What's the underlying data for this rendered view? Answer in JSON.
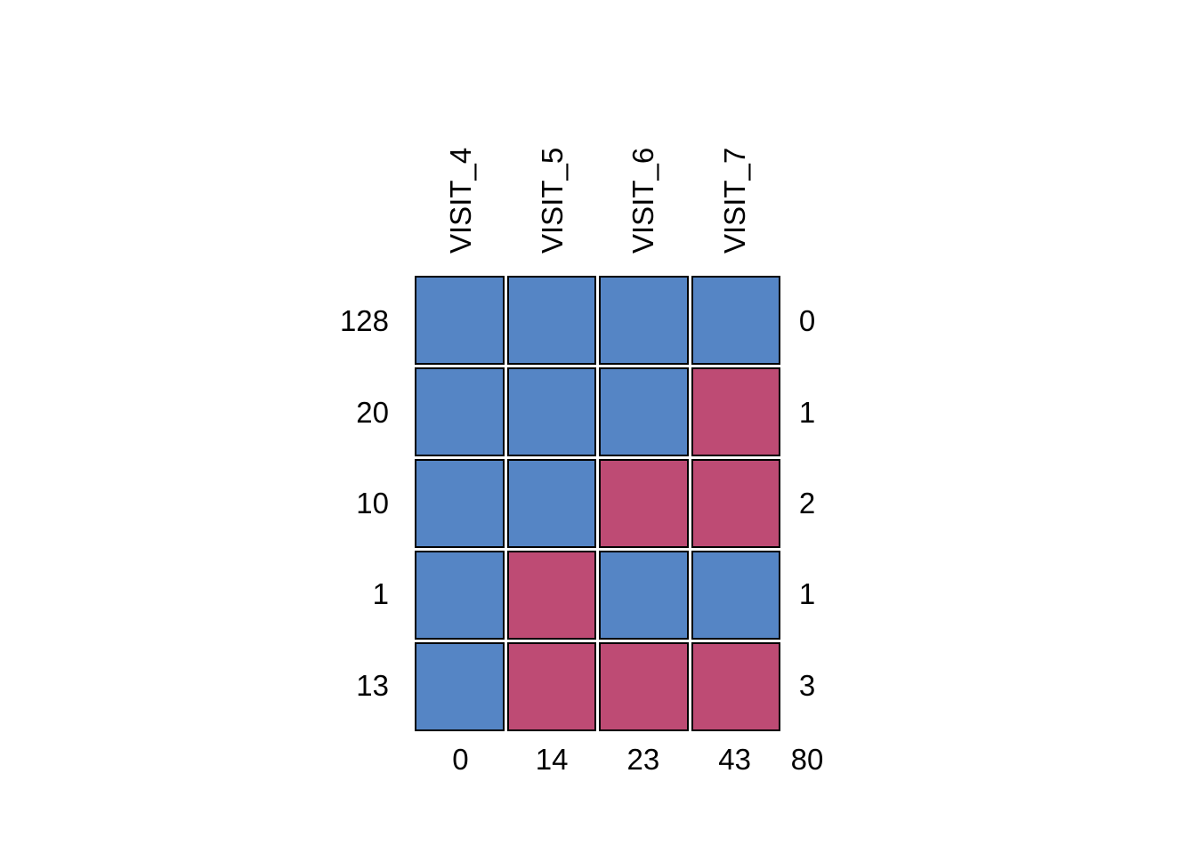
{
  "chart_data": {
    "type": "heatmap",
    "chart_kind": "missing-data-pattern",
    "columns": [
      "VISIT_4",
      "VISIT_5",
      "VISIT_6",
      "VISIT_7"
    ],
    "rows": [
      {
        "pattern_count": "128",
        "cells": [
          1,
          1,
          1,
          1
        ],
        "n_missing": "0"
      },
      {
        "pattern_count": "20",
        "cells": [
          1,
          1,
          1,
          0
        ],
        "n_missing": "1"
      },
      {
        "pattern_count": "10",
        "cells": [
          1,
          1,
          0,
          0
        ],
        "n_missing": "2"
      },
      {
        "pattern_count": "1",
        "cells": [
          1,
          0,
          1,
          1
        ],
        "n_missing": "1"
      },
      {
        "pattern_count": "13",
        "cells": [
          1,
          0,
          0,
          0
        ],
        "n_missing": "3"
      }
    ],
    "column_missing_counts": [
      "0",
      "14",
      "23",
      "43"
    ],
    "total_missing": "80",
    "cell_encoding": {
      "1": "observed",
      "0": "missing"
    },
    "colors": {
      "observed": "#5585C5",
      "missing": "#BE4B74",
      "cell_border": "#000000",
      "text": "#000000",
      "background": "#FFFFFF"
    },
    "legend_position": "none",
    "grid_lines": "off"
  }
}
